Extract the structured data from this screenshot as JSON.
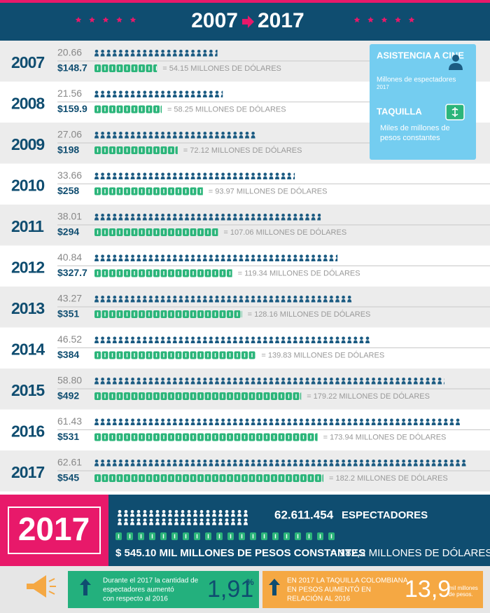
{
  "chart_data": {
    "type": "pictogram",
    "title_from": "2007",
    "title_to": "2017",
    "categories": [
      "2007",
      "2008",
      "2009",
      "2010",
      "2011",
      "2012",
      "2013",
      "2014",
      "2015",
      "2016",
      "2017"
    ],
    "series": [
      {
        "name": "ASISTENCIA A CINE",
        "color": "#1b5b82",
        "values": [
          20.66,
          21.56,
          27.06,
          33.66,
          38.01,
          40.84,
          43.27,
          46.52,
          58.8,
          61.43,
          62.61
        ],
        "value_labels": [
          "20.66",
          "21.56",
          "27.06",
          "33.66",
          "38.01",
          "40.84",
          "43.27",
          "46.52",
          "58.80",
          "61.43",
          "62.61"
        ]
      },
      {
        "name": "TAQUILLA",
        "color": "#2bb57a",
        "values": [
          148.7,
          159.9,
          198,
          258,
          294,
          327.7,
          351,
          384,
          492,
          531,
          545
        ],
        "value_labels": [
          "$148.7",
          "$159.9",
          "$198",
          "$258",
          "$294",
          "$327.7",
          "$351",
          "$384",
          "$492",
          "$531",
          "$545"
        ]
      }
    ],
    "usd": {
      "values": [
        54.15,
        58.25,
        72.12,
        93.97,
        107.06,
        119.34,
        128.16,
        139.83,
        179.22,
        173.94,
        182.2
      ],
      "value_labels": [
        "= 54.15 MILLONES DE DÓLARES",
        "= 58.25 MILLONES DE DÓLARES",
        "= 72.12 MILLONES DE DÓLARES",
        "= 93.97 MILLONES DE DÓLARES",
        "= 107.06 MILLONES DE DÓLARES",
        "= 119.34 MILLONES DE DÓLARES",
        "= 128.16 MILLONES DE DÓLARES",
        "= 139.83 MILLONES DE DÓLARES",
        "= 179.22 MILLONES DE DÓLARES",
        "= 173.94 MILLONES DE DÓLARES",
        "= 182.2 MILLONES DE DÓLARES"
      ]
    },
    "legend_notes": [
      [
        "Millones de espectadores",
        "2017"
      ],
      [
        "Miles de millones de",
        "pesos constantes"
      ]
    ]
  },
  "summary": {
    "year": "2017",
    "spectators": "62.611.454",
    "spectators_label": "ESPECTADORES",
    "box_office": "$ 545.10 MIL MILLONES DE PESOS CONSTANTES",
    "box_office_usd": "= 182,2 MILLONES DE DÓLARES",
    "stat_1": {
      "text": [
        "Durante el 2017 la cantidad de",
        "espectadores aumentó",
        "con respecto al 2016"
      ],
      "value": "1,91",
      "unit": "%"
    },
    "stat_2": {
      "text": [
        "EN 2017 LA TAQUILLA COLOMBIANA",
        "EN PESOS AUMENTÓ EN",
        "RELACIÓN AL 2016"
      ],
      "value": "13,9",
      "unit": [
        "mil millones",
        "de pesos."
      ]
    }
  }
}
